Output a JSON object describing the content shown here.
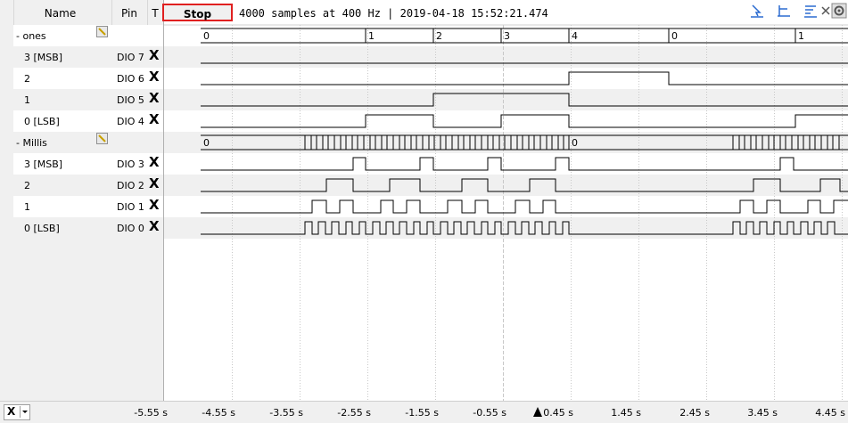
{
  "columns": {
    "name": "Name",
    "pin": "Pin",
    "trigger": "T"
  },
  "toolbar": {
    "stop_label": "Stop",
    "info": "4000 samples at 400 Hz | 2019-04-18 15:52:21.474",
    "icons": [
      "cursor-icon",
      "align-icon",
      "stack-icon",
      "close-icon",
      "settings-icon"
    ]
  },
  "groups": [
    {
      "name": "- ones",
      "bus_values": [
        "0",
        "1",
        "2",
        "3",
        "4",
        "0",
        "1"
      ],
      "signals": [
        {
          "name": "3 [MSB]",
          "pin": "DIO 7",
          "trigger": "X"
        },
        {
          "name": "2",
          "pin": "DIO 6",
          "trigger": "X"
        },
        {
          "name": "1",
          "pin": "DIO 5",
          "trigger": "X"
        },
        {
          "name": "0 [LSB]",
          "pin": "DIO 4",
          "trigger": "X"
        }
      ]
    },
    {
      "name": "- Millis",
      "bus_values": [
        "0",
        "0"
      ],
      "signals": [
        {
          "name": "3 [MSB]",
          "pin": "DIO 3",
          "trigger": "X"
        },
        {
          "name": "2",
          "pin": "DIO 2",
          "trigger": "X"
        },
        {
          "name": "1",
          "pin": "DIO 1",
          "trigger": "X"
        },
        {
          "name": "0 [LSB]",
          "pin": "DIO 0",
          "trigger": "X"
        }
      ]
    }
  ],
  "axis": {
    "ticks": [
      "-5.55 s",
      "-4.55 s",
      "-3.55 s",
      "-2.55 s",
      "-1.55 s",
      "-0.55 s",
      "0.45 s",
      "1.45 s",
      "2.45 s",
      "3.45 s",
      "4.45 s"
    ],
    "mode": "X"
  },
  "colors": {
    "panel": "#f0f0f0",
    "stop_border": "#e02020",
    "trace": "#000000",
    "grid": "#c8c8c8"
  }
}
